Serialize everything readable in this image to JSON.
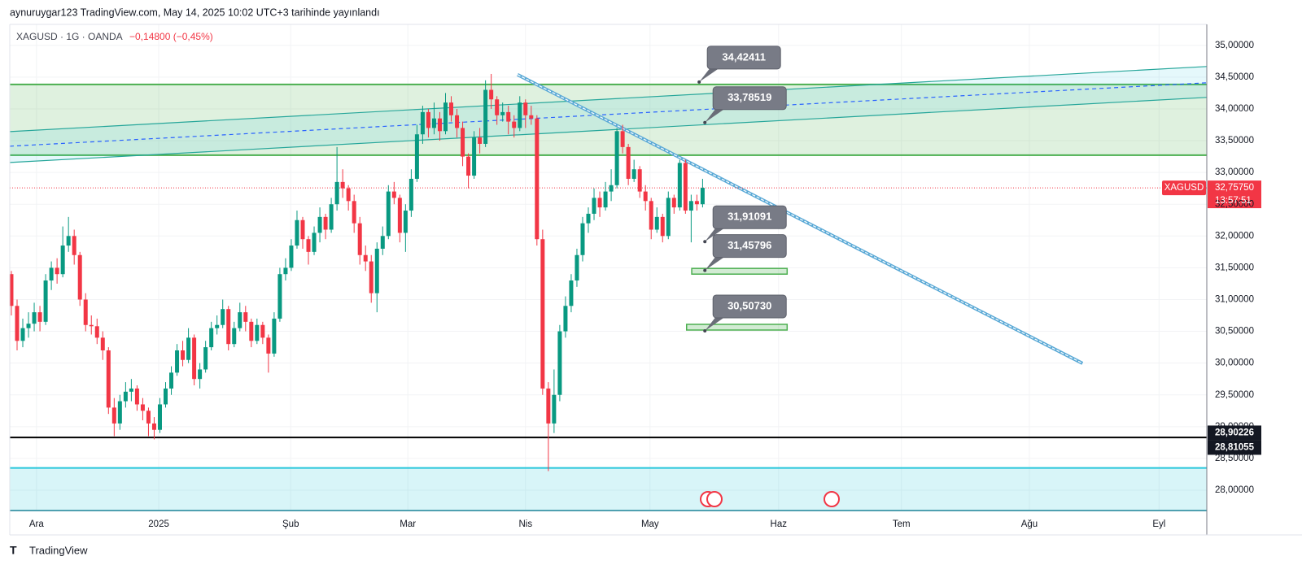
{
  "header": {
    "text": "aynuruygar123 TradingView.com, May 14, 2025 10:02 UTC+3 tarihinde yayınlandı"
  },
  "footer": {
    "logo": "TradingView"
  },
  "chart_data": {
    "type": "candlestick",
    "symbol": "XAGUSD · 1G · OANDA",
    "change": "−0,14800 (−0,45%)",
    "up_color": "#089981",
    "down_color": "#f23645",
    "grid": true,
    "xlim": [
      -0.28,
      209.26
    ],
    "ylim": [
      27.68,
      35.33
    ],
    "xticks": [
      {
        "value": 4.4,
        "label": "Ara"
      },
      {
        "value": 25.8,
        "label": "2025"
      },
      {
        "value": 48.9,
        "label": "Şub"
      },
      {
        "value": 69.4,
        "label": "Mar"
      },
      {
        "value": 90,
        "label": "Nis"
      },
      {
        "value": 111.8,
        "label": "May"
      },
      {
        "value": 134.3,
        "label": "Haz"
      },
      {
        "value": 155.8,
        "label": "Tem"
      },
      {
        "value": 178.2,
        "label": "Ağu"
      },
      {
        "value": 200.9,
        "label": "Eyl"
      }
    ],
    "yticks": [
      {
        "value": 28,
        "label": "28,00000"
      },
      {
        "value": 28.5,
        "label": "28,50000"
      },
      {
        "value": 29,
        "label": "29,00000"
      },
      {
        "value": 29.5,
        "label": "29,50000"
      },
      {
        "value": 30,
        "label": "30,00000"
      },
      {
        "value": 30.5,
        "label": "30,50000"
      },
      {
        "value": 31,
        "label": "31,00000"
      },
      {
        "value": 31.5,
        "label": "31,50000"
      },
      {
        "value": 32,
        "label": "32,00000"
      },
      {
        "value": 32.5,
        "label": "32,50000"
      },
      {
        "value": 33,
        "label": "33,00000"
      },
      {
        "value": 33.5,
        "label": "33,50000"
      },
      {
        "value": 34,
        "label": "34,00000"
      },
      {
        "value": 34.5,
        "label": "34,50000"
      },
      {
        "value": 35,
        "label": "35,00000"
      }
    ],
    "ohlc": [
      [
        31.4,
        31.45,
        30.75,
        30.9
      ],
      [
        30.9,
        31.0,
        30.2,
        30.35
      ],
      [
        30.35,
        30.7,
        30.25,
        30.55
      ],
      [
        30.55,
        30.8,
        30.4,
        30.62
      ],
      [
        30.62,
        30.95,
        30.5,
        30.8
      ],
      [
        30.8,
        30.9,
        30.5,
        30.65
      ],
      [
        30.65,
        31.4,
        30.6,
        31.3
      ],
      [
        31.3,
        31.6,
        31.15,
        31.5
      ],
      [
        31.5,
        31.65,
        31.25,
        31.4
      ],
      [
        31.4,
        32.15,
        31.35,
        31.85
      ],
      [
        31.85,
        32.3,
        31.75,
        32.0
      ],
      [
        32.0,
        32.1,
        31.55,
        31.7
      ],
      [
        31.7,
        31.75,
        30.9,
        31.0
      ],
      [
        31.0,
        31.1,
        30.5,
        30.6
      ],
      [
        30.6,
        30.75,
        30.45,
        30.58
      ],
      [
        30.58,
        30.7,
        30.3,
        30.4
      ],
      [
        30.4,
        30.5,
        30.05,
        30.2
      ],
      [
        30.2,
        30.25,
        29.2,
        29.3
      ],
      [
        29.3,
        29.45,
        28.85,
        29.05
      ],
      [
        29.05,
        29.5,
        28.95,
        29.4
      ],
      [
        29.4,
        29.7,
        29.3,
        29.55
      ],
      [
        29.55,
        29.75,
        29.4,
        29.6
      ],
      [
        29.6,
        29.65,
        29.25,
        29.35
      ],
      [
        29.35,
        29.45,
        29.1,
        29.25
      ],
      [
        29.25,
        29.3,
        28.85,
        29.05
      ],
      [
        29.05,
        29.15,
        28.8,
        28.95
      ],
      [
        28.95,
        29.45,
        28.9,
        29.35
      ],
      [
        29.35,
        29.7,
        29.3,
        29.6
      ],
      [
        29.6,
        29.95,
        29.5,
        29.85
      ],
      [
        29.85,
        30.3,
        29.8,
        30.2
      ],
      [
        30.2,
        30.35,
        29.95,
        30.05
      ],
      [
        30.05,
        30.55,
        30.0,
        30.4
      ],
      [
        30.4,
        30.45,
        29.65,
        29.75
      ],
      [
        29.75,
        30.0,
        29.6,
        29.9
      ],
      [
        29.9,
        30.35,
        29.85,
        30.25
      ],
      [
        30.25,
        30.65,
        30.2,
        30.55
      ],
      [
        30.55,
        30.75,
        30.45,
        30.6
      ],
      [
        30.6,
        31.0,
        30.55,
        30.85
      ],
      [
        30.85,
        30.9,
        30.2,
        30.3
      ],
      [
        30.3,
        30.65,
        30.25,
        30.55
      ],
      [
        30.55,
        30.95,
        30.5,
        30.8
      ],
      [
        30.8,
        30.9,
        30.5,
        30.65
      ],
      [
        30.65,
        30.7,
        30.25,
        30.35
      ],
      [
        30.35,
        30.7,
        30.3,
        30.6
      ],
      [
        30.6,
        30.65,
        30.3,
        30.4
      ],
      [
        30.4,
        30.45,
        29.85,
        30.15
      ],
      [
        30.15,
        30.8,
        30.1,
        30.7
      ],
      [
        30.7,
        31.5,
        30.65,
        31.4
      ],
      [
        31.4,
        31.65,
        31.3,
        31.5
      ],
      [
        31.5,
        31.95,
        31.45,
        31.85
      ],
      [
        31.85,
        32.4,
        31.8,
        32.25
      ],
      [
        32.25,
        32.3,
        31.8,
        31.95
      ],
      [
        31.95,
        32.0,
        31.55,
        31.75
      ],
      [
        31.75,
        32.15,
        31.7,
        32.05
      ],
      [
        32.05,
        32.45,
        31.9,
        32.3
      ],
      [
        32.3,
        32.35,
        31.95,
        32.1
      ],
      [
        32.1,
        32.6,
        32.05,
        32.5
      ],
      [
        32.5,
        33.4,
        32.4,
        32.85
      ],
      [
        32.85,
        33.05,
        32.6,
        32.75
      ],
      [
        32.75,
        32.8,
        32.4,
        32.55
      ],
      [
        32.55,
        32.65,
        32.05,
        32.2
      ],
      [
        32.2,
        32.3,
        31.55,
        31.7
      ],
      [
        31.7,
        31.85,
        31.45,
        31.6
      ],
      [
        31.6,
        31.7,
        30.95,
        31.1
      ],
      [
        31.1,
        31.9,
        30.8,
        31.8
      ],
      [
        31.8,
        32.15,
        31.7,
        32.0
      ],
      [
        32.0,
        32.8,
        31.95,
        32.7
      ],
      [
        32.7,
        32.85,
        32.5,
        32.6
      ],
      [
        32.6,
        32.65,
        31.9,
        32.05
      ],
      [
        32.05,
        32.5,
        31.75,
        32.4
      ],
      [
        32.4,
        33.05,
        32.3,
        32.9
      ],
      [
        32.9,
        33.75,
        32.85,
        33.6
      ],
      [
        33.6,
        34.05,
        33.45,
        33.95
      ],
      [
        33.95,
        34.0,
        33.55,
        33.7
      ],
      [
        33.7,
        34.1,
        33.6,
        33.85
      ],
      [
        33.85,
        33.95,
        33.5,
        33.65
      ],
      [
        33.65,
        34.25,
        33.6,
        34.1
      ],
      [
        34.1,
        34.2,
        33.8,
        33.9
      ],
      [
        33.9,
        34.0,
        33.55,
        33.7
      ],
      [
        33.7,
        33.8,
        33.1,
        33.25
      ],
      [
        33.25,
        33.3,
        32.75,
        32.95
      ],
      [
        32.95,
        33.65,
        32.9,
        33.55
      ],
      [
        33.55,
        33.7,
        33.3,
        33.45
      ],
      [
        33.45,
        34.45,
        33.4,
        34.3
      ],
      [
        34.3,
        34.55,
        34.0,
        34.15
      ],
      [
        34.15,
        34.2,
        33.75,
        33.9
      ],
      [
        33.9,
        34.1,
        33.8,
        33.95
      ],
      [
        33.95,
        34.05,
        33.6,
        33.8
      ],
      [
        33.8,
        33.9,
        33.55,
        33.7
      ],
      [
        33.7,
        34.2,
        33.65,
        34.1
      ],
      [
        34.1,
        34.15,
        33.7,
        33.9
      ],
      [
        33.9,
        34.05,
        33.75,
        33.85
      ],
      [
        33.85,
        33.9,
        31.85,
        31.95
      ],
      [
        31.95,
        32.1,
        29.5,
        29.6
      ],
      [
        29.6,
        29.7,
        28.3,
        29.05
      ],
      [
        29.05,
        29.9,
        28.9,
        29.5
      ],
      [
        29.5,
        30.6,
        29.4,
        30.5
      ],
      [
        30.5,
        31.05,
        30.4,
        30.9
      ],
      [
        30.9,
        31.4,
        30.8,
        31.3
      ],
      [
        31.3,
        31.8,
        31.2,
        31.7
      ],
      [
        31.7,
        32.3,
        31.6,
        32.2
      ],
      [
        32.2,
        32.45,
        32.05,
        32.35
      ],
      [
        32.35,
        32.75,
        32.25,
        32.6
      ],
      [
        32.6,
        32.7,
        32.3,
        32.45
      ],
      [
        32.45,
        32.85,
        32.4,
        32.7
      ],
      [
        32.7,
        33.05,
        32.55,
        32.8
      ],
      [
        32.8,
        33.7,
        32.75,
        33.65
      ],
      [
        33.65,
        33.75,
        33.3,
        33.4
      ],
      [
        33.4,
        33.45,
        32.8,
        32.9
      ],
      [
        32.9,
        33.2,
        32.85,
        33.05
      ],
      [
        33.05,
        33.1,
        32.6,
        32.7
      ],
      [
        32.7,
        32.8,
        32.4,
        32.55
      ],
      [
        32.55,
        32.6,
        31.95,
        32.1
      ],
      [
        32.1,
        32.45,
        32.05,
        32.3
      ],
      [
        32.3,
        32.35,
        31.9,
        32.0
      ],
      [
        32.0,
        32.7,
        31.95,
        32.6
      ],
      [
        32.6,
        32.65,
        32.35,
        32.45
      ],
      [
        32.45,
        33.2,
        32.4,
        33.15
      ],
      [
        33.15,
        33.2,
        32.35,
        32.4
      ],
      [
        32.4,
        32.65,
        31.9,
        32.55
      ],
      [
        32.55,
        32.65,
        32.4,
        32.5
      ],
      [
        32.5,
        32.9,
        32.45,
        32.7575
      ]
    ],
    "last_price": {
      "symbol": "XAGUSD",
      "value": 32.7575,
      "label": "32,75750",
      "countdown": "13:57:51",
      "color": "#f23645"
    },
    "price_labels": [
      {
        "value": 28.90226,
        "label": "28,90226"
      },
      {
        "value": 28.81055,
        "label": "28,81055"
      }
    ],
    "zones": [
      {
        "from": 33.272,
        "to": 34.385,
        "color": "#4caf50"
      },
      {
        "from": 27.68,
        "to": 28.35,
        "color": "#26c6da"
      }
    ],
    "hlines": [
      {
        "value": 28.83,
        "color": "#000000"
      }
    ],
    "boxes": [
      {
        "x": [
          119.1,
          135.8
        ],
        "y": [
          31.4,
          31.49
        ]
      },
      {
        "x": [
          118.2,
          135.8
        ],
        "y": [
          30.52,
          30.61
        ]
      }
    ],
    "lines": [
      {
        "x": [
          -0.28,
          209.26
        ],
        "y": [
          33.643,
          34.667
        ],
        "color": "#26a69a"
      },
      {
        "x": [
          -0.28,
          209.26
        ],
        "y": [
          33.157,
          34.181
        ],
        "color": "#26a69a"
      },
      {
        "x": [
          -0.28,
          209.26
        ],
        "y": [
          33.413,
          34.411
        ],
        "color": "#2962ff",
        "dashed": true
      },
      {
        "x": [
          88.6,
          187.5
        ],
        "y": [
          34.539,
          29.996
        ],
        "color": "#5aa9d6",
        "double": true
      }
    ],
    "annotations": [
      {
        "x": 120.4,
        "value": 34.42411,
        "label": "34,42411"
      },
      {
        "x": 121.4,
        "value": 33.78519,
        "label": "33,78519"
      },
      {
        "x": 121.4,
        "value": 31.91091,
        "label": "31,91091"
      },
      {
        "x": 121.4,
        "value": 31.45796,
        "label": "31,45796"
      },
      {
        "x": 121.4,
        "value": 30.5073,
        "label": "30,50730"
      }
    ]
  }
}
